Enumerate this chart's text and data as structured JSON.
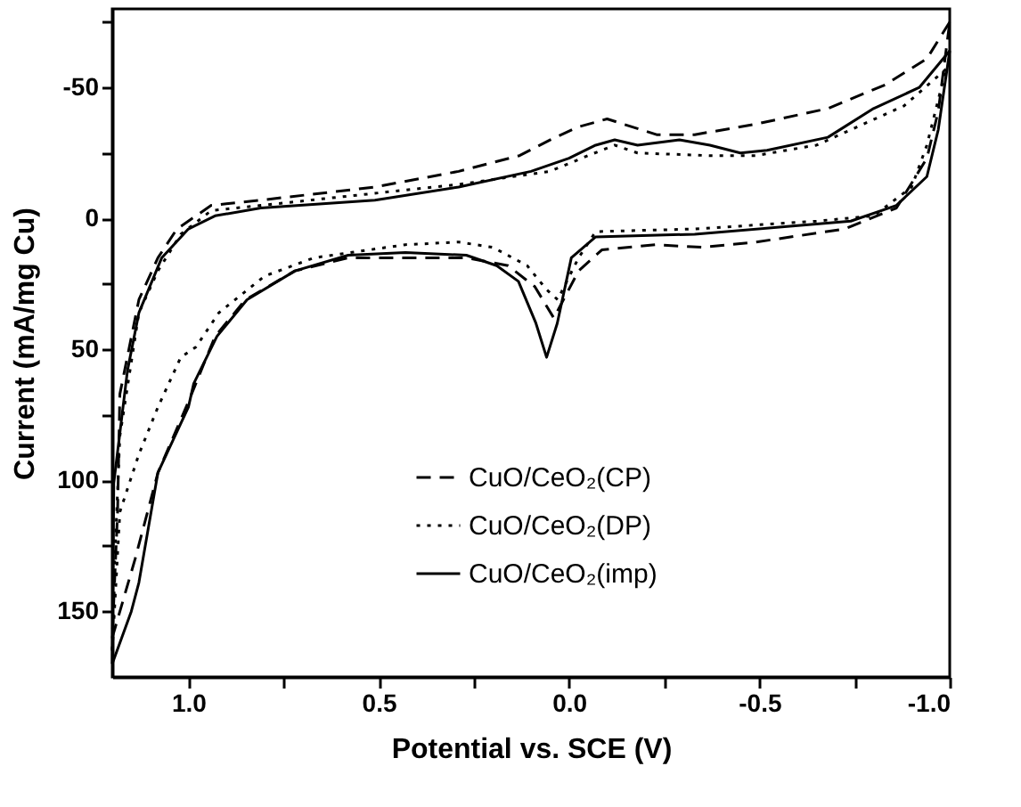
{
  "chart_data": {
    "type": "line",
    "xlabel": "Potential vs. SCE (V)",
    "ylabel": "Current (mA/mg Cu)",
    "xlim": [
      1.2,
      -1.0
    ],
    "ylim": [
      175,
      -80
    ],
    "xticks": [
      {
        "value": 1.0,
        "label": "1.0"
      },
      {
        "value": 0.75,
        "label": null
      },
      {
        "value": 0.5,
        "label": "0.5"
      },
      {
        "value": 0.25,
        "label": null
      },
      {
        "value": 0.0,
        "label": "0.0"
      },
      {
        "value": -0.25,
        "label": null
      },
      {
        "value": -0.5,
        "label": "-0.5"
      },
      {
        "value": -0.75,
        "label": null
      },
      {
        "value": -1.0,
        "label": "-1.0"
      }
    ],
    "yticks": [
      {
        "value": -75,
        "label": null
      },
      -50,
      {
        "value": -25,
        "label": null
      },
      0,
      {
        "value": 25,
        "label": null
      },
      50,
      {
        "value": 75,
        "label": null
      },
      100,
      {
        "value": 125,
        "label": null
      },
      150
    ],
    "grid": false,
    "legend": "bottom",
    "marker": "none",
    "series": [
      {
        "name": "CuO/CeO₂(CP)",
        "color": "#000000",
        "line_style": "dashed",
        "x": [
          1.2,
          1.14,
          1.08,
          1.0,
          0.93,
          0.85,
          0.72,
          0.58,
          0.43,
          0.27,
          0.16,
          0.09,
          0.04,
          -0.025,
          -0.086,
          -0.226,
          -0.35,
          -0.491,
          -0.724,
          -0.86,
          -0.94,
          -0.97,
          -1.0
        ],
        "values": [
          160,
          130,
          97,
          70,
          45,
          31,
          20,
          15,
          15,
          15,
          18,
          26,
          38,
          20,
          12,
          10,
          11,
          9,
          4,
          -4,
          -23,
          -41,
          -75
        ]
      },
      {
        "color": "#000000",
        "line_style": "dashed",
        "x": [
          -1.0,
          -0.94,
          -0.83,
          -0.68,
          -0.49,
          -0.33,
          -0.23,
          -0.1,
          -0.025,
          0.05,
          0.13,
          0.29,
          0.51,
          0.81,
          0.94,
          1.03,
          1.08,
          1.13,
          1.18,
          1.186,
          1.196,
          1.2
        ],
        "values": [
          -75,
          -61,
          -51,
          -42,
          -36,
          -32,
          -32,
          -38,
          -35,
          -30,
          -24,
          -18,
          -12,
          -7,
          -5,
          4,
          15,
          31,
          67,
          112,
          146,
          160
        ]
      },
      {
        "name": "CuO/CeO₂(DP)",
        "color": "#000000",
        "line_style": "dotted",
        "x": [
          1.2,
          1.18,
          1.13,
          1.08,
          1.02,
          0.98,
          0.92,
          0.8,
          0.67,
          0.43,
          0.29,
          0.2,
          0.11,
          0.06,
          0.03,
          -0.025,
          -0.07,
          -0.33,
          -0.65,
          -0.8,
          -0.9,
          -0.94,
          -0.99
        ],
        "values": [
          165,
          112,
          90,
          72,
          53,
          49,
          36,
          22,
          15,
          10,
          9,
          11,
          18,
          27,
          31,
          15,
          5,
          4,
          1,
          -1,
          -12,
          -28,
          -57
        ]
      },
      {
        "color": "#000000",
        "line_style": "dotted",
        "x": [
          -0.99,
          -0.88,
          -0.65,
          -0.49,
          -0.37,
          -0.18,
          -0.12,
          -0.05,
          0.05,
          0.29,
          0.55,
          0.81,
          0.94,
          1.02,
          1.08,
          1.13,
          1.18,
          1.196,
          1.2
        ],
        "values": [
          -57,
          -43,
          -28,
          -24,
          -24,
          -25,
          -28,
          -24,
          -18,
          -13,
          -9,
          -5,
          -3,
          6,
          20,
          36,
          83,
          139,
          165
        ]
      },
      {
        "name": "CuO/CeO₂(imp)",
        "color": "#000000",
        "line_style": "solid",
        "x": [
          1.2,
          1.15,
          1.13,
          1.08,
          1.0,
          0.986,
          0.925,
          0.846,
          0.72,
          0.58,
          0.43,
          0.27,
          0.19,
          0.133,
          0.087,
          0.059,
          0.031,
          -0.006,
          -0.07,
          -0.33,
          -0.58,
          -0.74,
          -0.86,
          -0.94,
          -0.97,
          -1.0
        ],
        "values": [
          170,
          150,
          139,
          97,
          72,
          63,
          45,
          31,
          20,
          14,
          13,
          14,
          18,
          24,
          40,
          53,
          40,
          15,
          7,
          6,
          3,
          1,
          -5,
          -16,
          -34,
          -64
        ]
      },
      {
        "color": "#000000",
        "line_style": "solid",
        "x": [
          -1.0,
          -0.92,
          -0.8,
          -0.68,
          -0.52,
          -0.45,
          -0.37,
          -0.29,
          -0.18,
          -0.12,
          -0.07,
          0.0,
          0.1,
          0.29,
          0.51,
          0.81,
          0.93,
          1.0,
          1.07,
          1.13,
          1.16,
          1.196,
          1.2
        ],
        "values": [
          -64,
          -50,
          -42,
          -31,
          -26,
          -25,
          -28,
          -30,
          -28,
          -30,
          -28,
          -23,
          -18,
          -12,
          -7,
          -4,
          -1,
          4,
          15,
          36,
          58,
          101,
          170
        ]
      }
    ]
  }
}
